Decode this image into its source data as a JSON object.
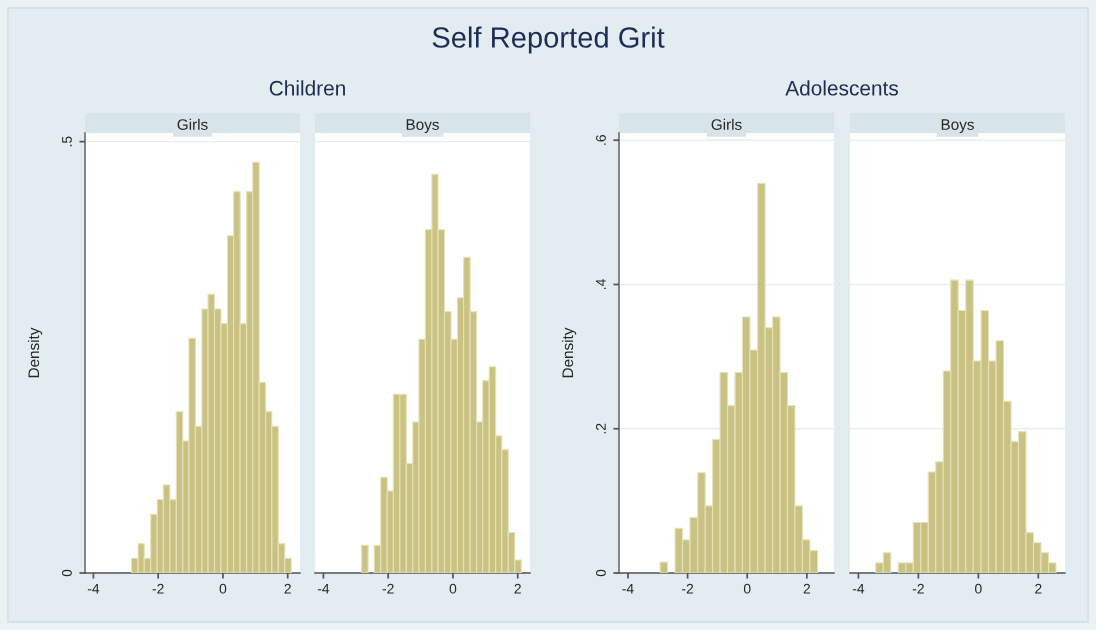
{
  "chart_data": [
    {
      "type": "histogram",
      "title": "Girls",
      "subtitle": "Children",
      "annotations": [
        "Self Reported Grit"
      ],
      "ylabel": "Density",
      "color": "#c9c283",
      "bins": [
        -2.82,
        -2.62,
        -2.43,
        -2.23,
        -2.03,
        -1.84,
        -1.64,
        -1.44,
        -1.24,
        -1.05,
        -0.85,
        -0.65,
        -0.46,
        -0.26,
        -0.06,
        0.14,
        0.33,
        0.53,
        0.73,
        0.92,
        1.12,
        1.32,
        1.51,
        1.71,
        1.91,
        2.11
      ],
      "values": [
        0.017,
        0.034,
        0.017,
        0.068,
        0.085,
        0.102,
        0.085,
        0.187,
        0.153,
        0.272,
        0.17,
        0.306,
        0.323,
        0.306,
        0.289,
        0.391,
        0.442,
        0.289,
        0.442,
        0.476,
        0.221,
        0.187,
        0.17,
        0.034,
        0.017
      ],
      "xlim": [
        -4.26,
        2.38
      ],
      "xticks": [
        -4,
        -2,
        0,
        2
      ],
      "ylim": [
        0,
        0.51
      ],
      "yticks": [
        0,
        {
          "value": 0.5,
          "label": ".5"
        }
      ],
      "grid": "y"
    },
    {
      "type": "histogram",
      "title": "Boys",
      "color": "#c9c283",
      "bins": [
        -2.82,
        -2.62,
        -2.43,
        -2.23,
        -2.03,
        -1.84,
        -1.64,
        -1.44,
        -1.24,
        -1.05,
        -0.85,
        -0.65,
        -0.46,
        -0.26,
        -0.06,
        0.14,
        0.33,
        0.53,
        0.73,
        0.92,
        1.12,
        1.32,
        1.51,
        1.71,
        1.91,
        2.11
      ],
      "values": [
        0.032,
        0,
        0.032,
        0.111,
        0.095,
        0.207,
        0.207,
        0.127,
        0.175,
        0.271,
        0.398,
        0.462,
        0.398,
        0.303,
        0.271,
        0.319,
        0.366,
        0.303,
        0.175,
        0.223,
        0.239,
        0.159,
        0.143,
        0.047,
        0.015
      ],
      "xlim": [
        -4.26,
        2.38
      ],
      "xticks": [
        -4,
        -2,
        0,
        2
      ],
      "ylim": [
        0,
        0.51
      ],
      "yticks": [
        0,
        0.5
      ],
      "grid": "y",
      "tick_labels": "x"
    },
    {
      "type": "histogram",
      "title": "Girls",
      "subtitle": "Adolescents",
      "ylabel": "Density",
      "color": "#c9c283",
      "bins": [
        -2.92,
        -2.67,
        -2.42,
        -2.17,
        -1.92,
        -1.66,
        -1.41,
        -1.16,
        -0.91,
        -0.66,
        -0.41,
        -0.16,
        0.09,
        0.35,
        0.6,
        0.85,
        1.1,
        1.35,
        1.6,
        1.85,
        2.1,
        2.36
      ],
      "values": [
        0.015,
        0,
        0.062,
        0.046,
        0.077,
        0.139,
        0.093,
        0.185,
        0.278,
        0.232,
        0.278,
        0.355,
        0.309,
        0.54,
        0.34,
        0.355,
        0.278,
        0.232,
        0.093,
        0.046,
        0.031
      ],
      "xlim": [
        -4.3,
        2.91
      ],
      "xticks": [
        -4,
        -2,
        0,
        2
      ],
      "ylim": [
        0,
        0.61
      ],
      "yticks": [
        0,
        {
          "value": 0.2,
          "label": ".2"
        },
        {
          "value": 0.4,
          "label": ".4"
        },
        {
          "value": 0.6,
          "label": ".6"
        }
      ],
      "grid": "y"
    },
    {
      "type": "histogram",
      "title": "Boys",
      "color": "#c9c283",
      "bins": [
        -3.42,
        -3.17,
        -2.92,
        -2.67,
        -2.42,
        -2.17,
        -1.92,
        -1.67,
        -1.42,
        -1.17,
        -0.92,
        -0.67,
        -0.42,
        -0.17,
        0.09,
        0.34,
        0.59,
        0.84,
        1.09,
        1.34,
        1.59,
        1.84,
        2.09,
        2.34,
        2.59
      ],
      "values": [
        0.014,
        0.028,
        0,
        0.014,
        0.014,
        0.07,
        0.07,
        0.14,
        0.154,
        0.28,
        0.406,
        0.364,
        0.406,
        0.294,
        0.364,
        0.294,
        0.322,
        0.238,
        0.182,
        0.196,
        0.056,
        0.042,
        0.028,
        0.014
      ],
      "xlim": [
        -4.28,
        2.89
      ],
      "xticks": [
        -4,
        -2,
        0,
        2
      ],
      "ylim": [
        0,
        0.61
      ],
      "yticks": [
        0,
        0.2,
        0.4,
        0.6
      ],
      "grid": "y",
      "tick_labels": "x"
    }
  ]
}
